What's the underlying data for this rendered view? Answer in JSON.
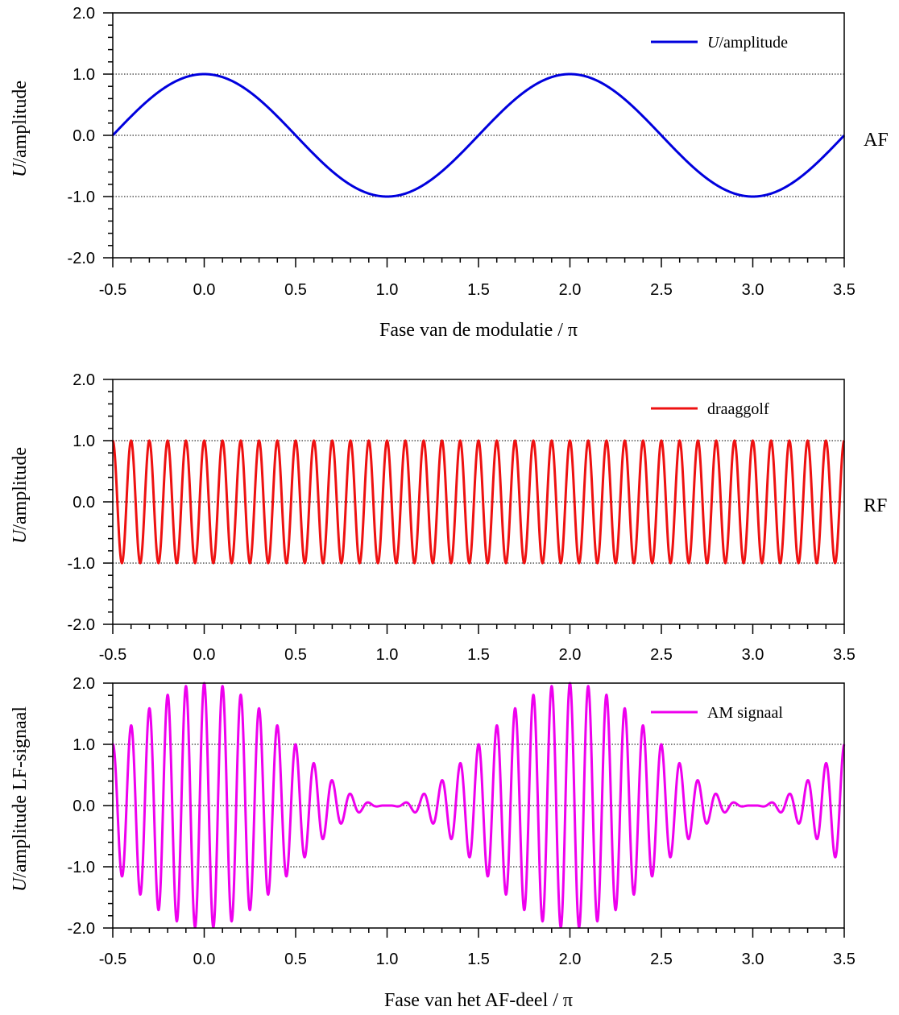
{
  "chart_data": [
    {
      "type": "line",
      "panel": "AF",
      "side_label": "AF",
      "xlabel": "Fase van de modulatie / π",
      "ylabel_italic": "U",
      "ylabel_rest": "/amplitude",
      "xlim": [
        -0.5,
        3.5
      ],
      "ylim": [
        -2.0,
        2.0
      ],
      "xticks": [
        "-0.5",
        "0.0",
        "0.5",
        "1.0",
        "1.5",
        "2.0",
        "2.5",
        "3.0",
        "3.5"
      ],
      "yticks": [
        "2.0",
        "1.0",
        "0.0",
        "-1.0",
        "-2.0"
      ],
      "grid_y": [
        1.0,
        0.0,
        -1.0
      ],
      "legend_position": "top-right",
      "series": [
        {
          "name_italic": "U",
          "name_rest": "/amplitude",
          "color": "#0000dd",
          "function": "cos(pi*x)",
          "x": [
            -0.5,
            -0.25,
            0.0,
            0.25,
            0.5,
            0.75,
            1.0,
            1.25,
            1.5,
            1.75,
            2.0,
            2.25,
            2.5,
            2.75,
            3.0,
            3.25,
            3.5
          ],
          "values": [
            0.0,
            0.71,
            1.0,
            0.71,
            0.0,
            -0.71,
            -1.0,
            -0.71,
            0.0,
            0.71,
            1.0,
            0.71,
            0.0,
            -0.71,
            -1.0,
            -0.71,
            0.0
          ]
        }
      ]
    },
    {
      "type": "line",
      "panel": "RF",
      "side_label": "RF",
      "xlabel": "",
      "ylabel_italic": "U",
      "ylabel_rest": "/amplitude",
      "xlim": [
        -0.5,
        3.5
      ],
      "ylim": [
        -2.0,
        2.0
      ],
      "xticks": [
        "-0.5",
        "0.0",
        "0.5",
        "1.0",
        "1.5",
        "2.0",
        "2.5",
        "3.0",
        "3.5"
      ],
      "yticks": [
        "2.0",
        "1.0",
        "0.0",
        "-1.0",
        "-2.0"
      ],
      "grid_y": [
        1.0,
        0.0,
        -1.0
      ],
      "legend_position": "top-right",
      "series": [
        {
          "name": "draaggolf",
          "color": "#ee1111",
          "function": "cos(20*pi*x)",
          "x": [
            -0.5,
            -0.45,
            -0.4,
            -0.35,
            -0.3,
            -0.25,
            -0.2
          ],
          "values": [
            1.0,
            -1.0,
            1.0,
            -1.0,
            1.0,
            -1.0,
            1.0
          ]
        }
      ]
    },
    {
      "type": "line",
      "panel": "AM",
      "side_label": "",
      "xlabel": "Fase van het AF-deel / π",
      "ylabel_italic": "U",
      "ylabel_rest": "/amplitude LF-signaal",
      "xlim": [
        -0.5,
        3.5
      ],
      "ylim": [
        -2.0,
        2.0
      ],
      "xticks": [
        "-0.5",
        "0.0",
        "0.5",
        "1.0",
        "1.5",
        "2.0",
        "2.5",
        "3.0",
        "3.5"
      ],
      "yticks": [
        "2.0",
        "1.0",
        "0.0",
        "-1.0",
        "-2.0"
      ],
      "grid_y": [
        1.0,
        0.0,
        -1.0
      ],
      "legend_position": "top-right",
      "series": [
        {
          "name": "AM signaal",
          "color": "#ee00ee",
          "function": "(1+cos(pi*x))*cos(20*pi*x)",
          "x": [
            -0.5,
            -0.4,
            -0.3,
            -0.2,
            -0.1,
            0.0,
            0.5,
            1.0,
            2.0,
            3.0,
            3.5
          ],
          "values": [
            1.0,
            1.31,
            1.59,
            1.81,
            1.95,
            2.0,
            1.0,
            0.0,
            2.0,
            0.0,
            1.0
          ]
        }
      ]
    }
  ]
}
